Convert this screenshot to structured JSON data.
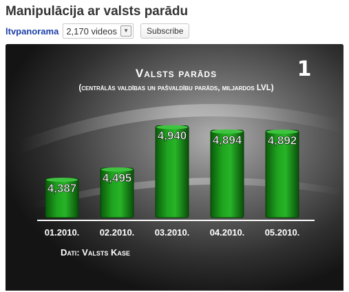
{
  "video": {
    "title": "Manipulācija ar valsts parādu"
  },
  "channel": {
    "name": "ltvpanorama",
    "videos_count": "2,170 videos",
    "subscribe_label": "Subscribe"
  },
  "player": {
    "logo_text": "1"
  },
  "chart_data": {
    "type": "bar",
    "title": "Valsts parāds",
    "subtitle": "(centrālās valdības un pašvaldību parāds, miljardos LVL)",
    "categories": [
      "01.2010.",
      "02.2010.",
      "03.2010.",
      "04.2010.",
      "05.2010."
    ],
    "values": [
      4.387,
      4.495,
      4.94,
      4.894,
      4.892
    ],
    "value_labels": [
      "4,387",
      "4,495",
      "4,940",
      "4,894",
      "4,892"
    ],
    "source": "Dati: Valsts Kase",
    "bar_color": "#1fa31f",
    "grid": false,
    "legend": "none"
  }
}
